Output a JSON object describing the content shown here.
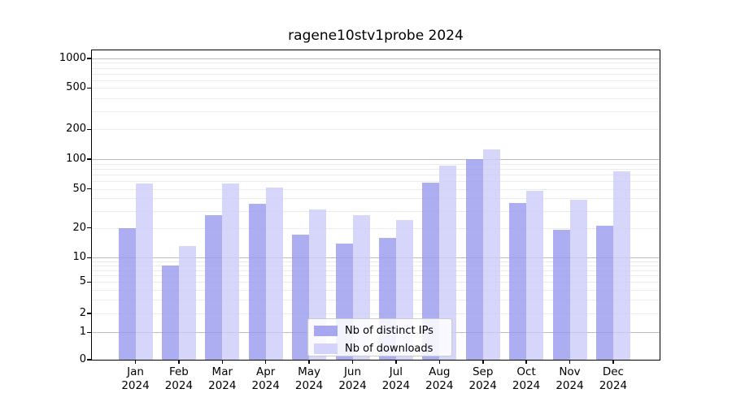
{
  "chart_data": {
    "type": "bar",
    "title": "ragene10stv1probe 2024",
    "categories": [
      "Jan",
      "Feb",
      "Mar",
      "Apr",
      "May",
      "Jun",
      "Jul",
      "Aug",
      "Sep",
      "Oct",
      "Nov",
      "Dec"
    ],
    "year": "2024",
    "series": [
      {
        "name": "Nb of distinct IPs",
        "color": "#9999ee",
        "values": [
          20,
          8,
          27,
          35,
          17,
          14,
          16,
          58,
          100,
          36,
          19,
          21
        ]
      },
      {
        "name": "Nb of downloads",
        "color": "#ccccfa",
        "values": [
          57,
          13,
          57,
          52,
          31,
          27,
          24,
          86,
          125,
          48,
          39,
          75
        ]
      }
    ],
    "y_ticks": [
      0,
      1,
      2,
      5,
      10,
      20,
      50,
      100,
      200,
      500,
      1000
    ],
    "yscale": "symlog",
    "ylim": [
      0,
      1200
    ],
    "grid": "on",
    "legend_position": "lower center",
    "legend_labels": [
      "Nb of distinct IPs",
      "Nb of downloads"
    ]
  }
}
